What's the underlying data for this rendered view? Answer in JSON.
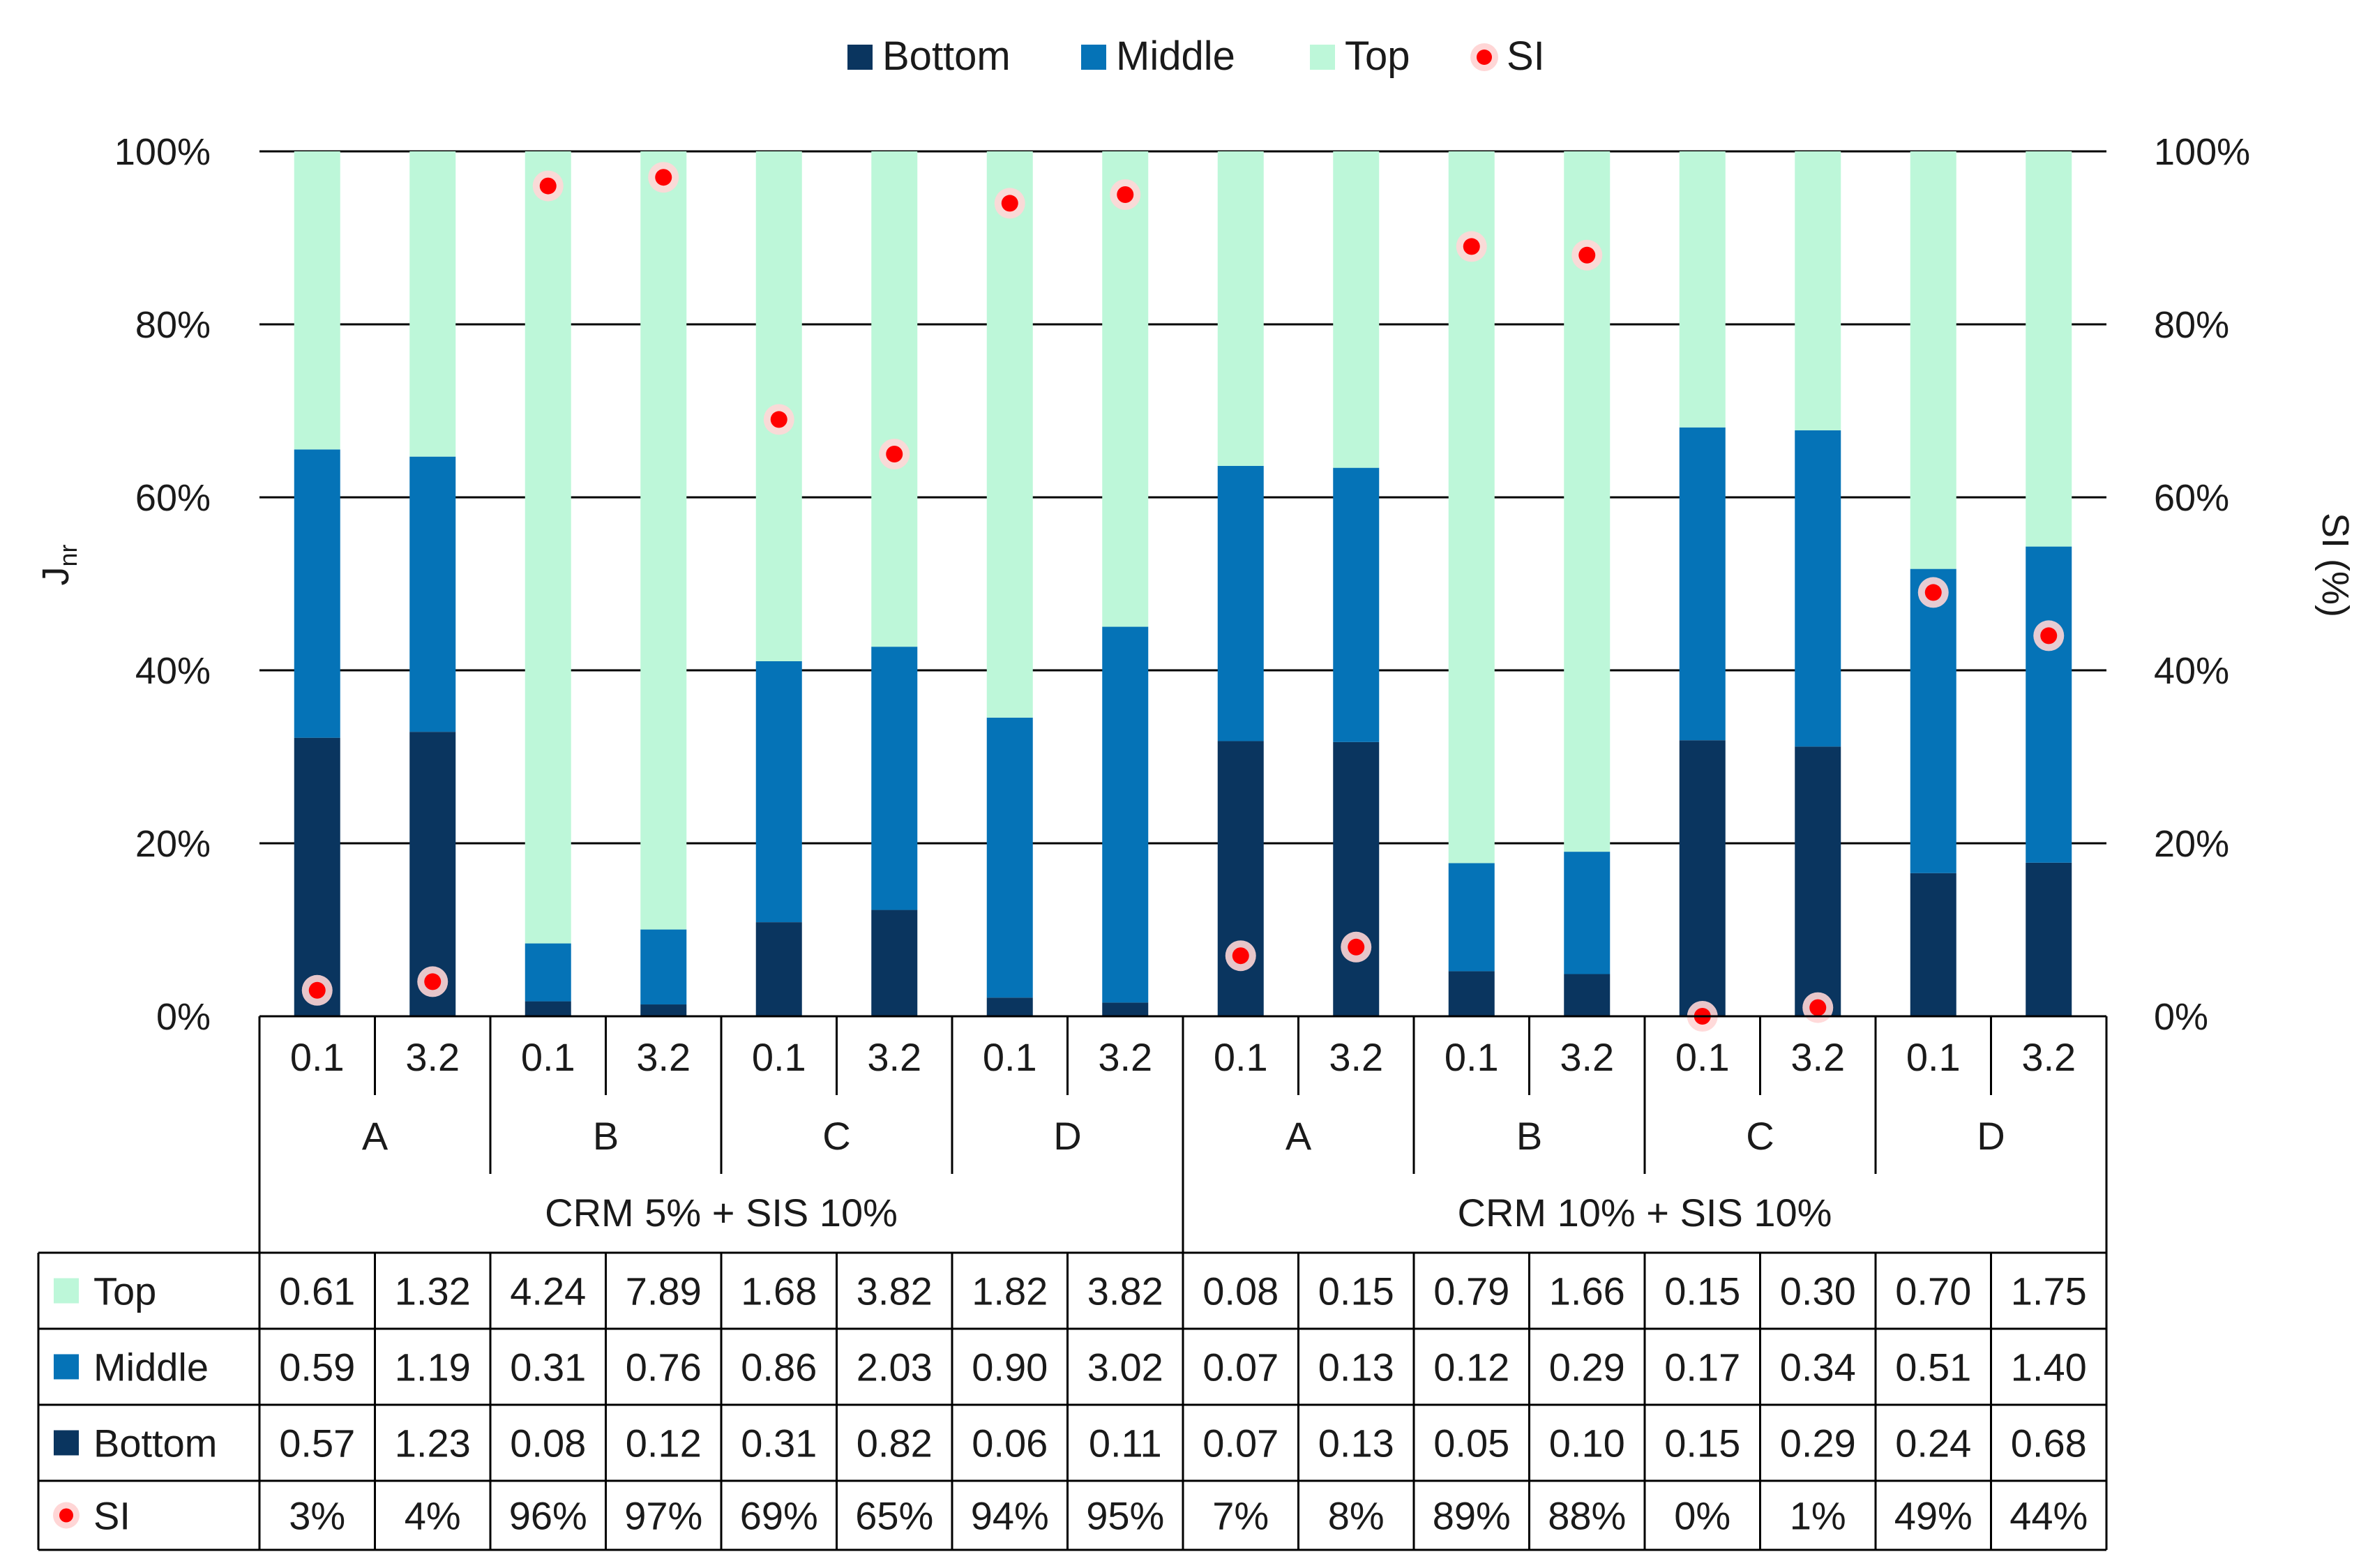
{
  "chart_data": {
    "type": "bar",
    "stacked": "percent",
    "legend": {
      "placement": "top",
      "items": [
        {
          "label": "Bottom",
          "color": "#0a355f",
          "marker": "square"
        },
        {
          "label": "Middle",
          "color": "#0573b7",
          "marker": "square"
        },
        {
          "label": "Top",
          "color": "#bdf7d9",
          "marker": "square"
        },
        {
          "label": "SI",
          "color": "#ff0000",
          "marker": "circle"
        }
      ]
    },
    "ylabel": "J",
    "ylabel_sub": "nr",
    "y2label": "SI (%)",
    "ylim": [
      0,
      100
    ],
    "y2lim": [
      0,
      100
    ],
    "y_ticks": [
      "0%",
      "20%",
      "40%",
      "60%",
      "80%",
      "100%"
    ],
    "y2_ticks": [
      "0%",
      "20%",
      "40%",
      "60%",
      "80%",
      "100%"
    ],
    "grid": true,
    "groups": [
      {
        "name": "CRM 5% + SIS 10%",
        "subgroups": [
          "A",
          "B",
          "C",
          "D"
        ]
      },
      {
        "name": "CRM 10% + SIS 10%",
        "subgroups": [
          "A",
          "B",
          "C",
          "D"
        ]
      }
    ],
    "stress_levels": [
      "0.1",
      "3.2"
    ],
    "categories": [
      "0.1",
      "3.2",
      "0.1",
      "3.2",
      "0.1",
      "3.2",
      "0.1",
      "3.2",
      "0.1",
      "3.2",
      "0.1",
      "3.2",
      "0.1",
      "3.2",
      "0.1",
      "3.2"
    ],
    "series": [
      {
        "name": "Top",
        "color": "#bdf7d9",
        "values": [
          0.61,
          1.32,
          4.24,
          7.89,
          1.68,
          3.82,
          1.82,
          3.82,
          0.08,
          0.15,
          0.79,
          1.66,
          0.15,
          0.3,
          0.7,
          1.75
        ],
        "labels": [
          "0.61",
          "1.32",
          "4.24",
          "7.89",
          "1.68",
          "3.82",
          "1.82",
          "3.82",
          "0.08",
          "0.15",
          "0.79",
          "1.66",
          "0.15",
          "0.30",
          "0.70",
          "1.75"
        ]
      },
      {
        "name": "Middle",
        "color": "#0573b7",
        "values": [
          0.59,
          1.19,
          0.31,
          0.76,
          0.86,
          2.03,
          0.9,
          3.02,
          0.07,
          0.13,
          0.12,
          0.29,
          0.17,
          0.34,
          0.51,
          1.4
        ],
        "labels": [
          "0.59",
          "1.19",
          "0.31",
          "0.76",
          "0.86",
          "2.03",
          "0.90",
          "3.02",
          "0.07",
          "0.13",
          "0.12",
          "0.29",
          "0.17",
          "0.34",
          "0.51",
          "1.40"
        ]
      },
      {
        "name": "Bottom",
        "color": "#0a355f",
        "values": [
          0.57,
          1.23,
          0.08,
          0.12,
          0.31,
          0.82,
          0.06,
          0.11,
          0.07,
          0.13,
          0.05,
          0.1,
          0.15,
          0.29,
          0.24,
          0.68
        ],
        "labels": [
          "0.57",
          "1.23",
          "0.08",
          "0.12",
          "0.31",
          "0.82",
          "0.06",
          "0.11",
          "0.07",
          "0.13",
          "0.05",
          "0.10",
          "0.15",
          "0.29",
          "0.24",
          "0.68"
        ]
      },
      {
        "name": "SI",
        "color": "#ff0000",
        "axis": "secondary",
        "values": [
          3,
          4,
          96,
          97,
          69,
          65,
          94,
          95,
          7,
          8,
          89,
          88,
          0,
          1,
          49,
          44
        ],
        "labels": [
          "3%",
          "4%",
          "96%",
          "97%",
          "69%",
          "65%",
          "94%",
          "95%",
          "7%",
          "8%",
          "89%",
          "88%",
          "0%",
          "1%",
          "49%",
          "44%"
        ]
      }
    ]
  }
}
